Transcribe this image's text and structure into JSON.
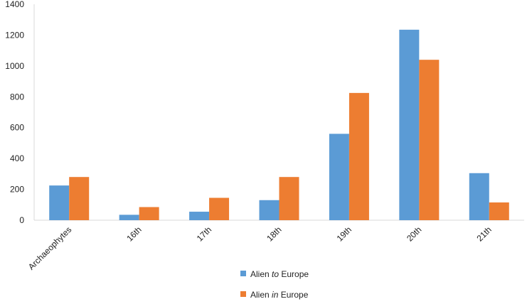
{
  "chart_data": {
    "type": "bar",
    "categories": [
      "Archaeophytes",
      "16th",
      "17th",
      "18th",
      "19th",
      "20th",
      "21th"
    ],
    "series": [
      {
        "name": "Alien to Europe",
        "legend_prefix": "Alien ",
        "legend_italic": "to",
        "legend_suffix": " Europe",
        "color": "#5B9BD5",
        "values": [
          225,
          35,
          55,
          130,
          560,
          1235,
          305
        ]
      },
      {
        "name": "Alien in Europe",
        "legend_prefix": "Alien ",
        "legend_italic": "in",
        "legend_suffix": " Europe",
        "color": "#ED7D31",
        "values": [
          280,
          85,
          145,
          280,
          825,
          1040,
          115
        ]
      }
    ],
    "ylim": [
      0,
      1400
    ],
    "yticks": [
      0,
      200,
      400,
      600,
      800,
      1000,
      1200,
      1400
    ],
    "grid": false,
    "legend": "bottom-center"
  }
}
